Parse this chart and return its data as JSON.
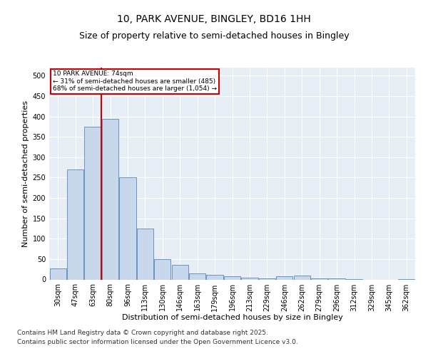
{
  "title_line1": "10, PARK AVENUE, BINGLEY, BD16 1HH",
  "title_line2": "Size of property relative to semi-detached houses in Bingley",
  "xlabel": "Distribution of semi-detached houses by size in Bingley",
  "ylabel": "Number of semi-detached properties",
  "categories": [
    "30sqm",
    "47sqm",
    "63sqm",
    "80sqm",
    "96sqm",
    "113sqm",
    "130sqm",
    "146sqm",
    "163sqm",
    "179sqm",
    "196sqm",
    "213sqm",
    "229sqm",
    "246sqm",
    "262sqm",
    "279sqm",
    "296sqm",
    "312sqm",
    "329sqm",
    "345sqm",
    "362sqm"
  ],
  "values": [
    27,
    270,
    375,
    395,
    250,
    125,
    50,
    35,
    15,
    12,
    8,
    5,
    2,
    8,
    10,
    3,
    2,
    1,
    0,
    0,
    1
  ],
  "bar_color": "#c8d8ea",
  "bar_edge_color": "#5588bb",
  "highlight_color": "#cc0000",
  "annotation_title": "10 PARK AVENUE: 74sqm",
  "annotation_line1": "← 31% of semi-detached houses are smaller (485)",
  "annotation_line2": "68% of semi-detached houses are larger (1,054) →",
  "annotation_box_color": "#cc0000",
  "footer_line1": "Contains HM Land Registry data © Crown copyright and database right 2025.",
  "footer_line2": "Contains public sector information licensed under the Open Government Licence v3.0.",
  "ylim": [
    0,
    520
  ],
  "yticks": [
    0,
    50,
    100,
    150,
    200,
    250,
    300,
    350,
    400,
    450,
    500
  ],
  "background_color": "#e8eef5",
  "grid_color": "#ffffff",
  "title_fontsize": 10,
  "subtitle_fontsize": 9,
  "axis_label_fontsize": 8,
  "tick_fontsize": 7,
  "footer_fontsize": 6.5
}
